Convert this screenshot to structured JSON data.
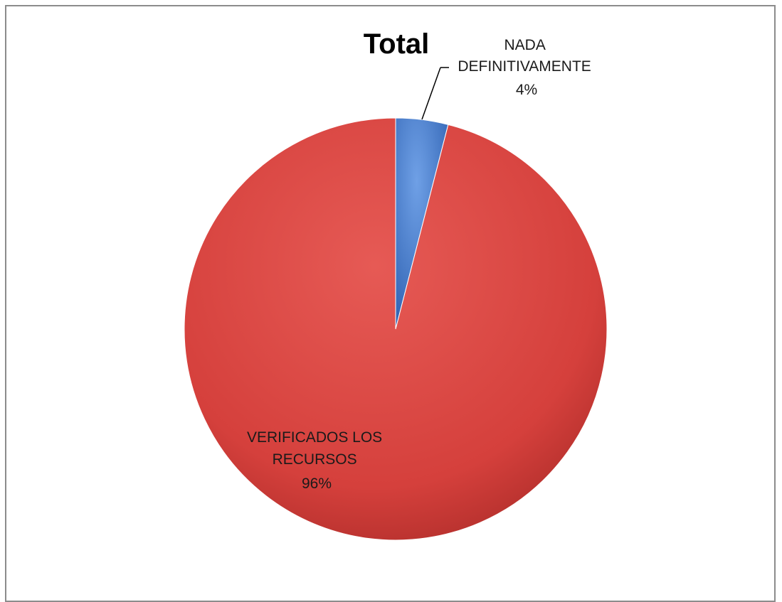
{
  "chart_data": {
    "type": "pie",
    "title": "Total",
    "slices": [
      {
        "label_lines": [
          "NADA",
          "DEFINITIVAMENTE"
        ],
        "value": 4,
        "percent_label": "4%",
        "color": "#4a7fd0"
      },
      {
        "label_lines": [
          "VERIFICADOS LOS",
          "RECURSOS"
        ],
        "value": 96,
        "percent_label": "96%",
        "color": "#d64541"
      }
    ],
    "legend": "none",
    "style": "3D shaded pie"
  }
}
